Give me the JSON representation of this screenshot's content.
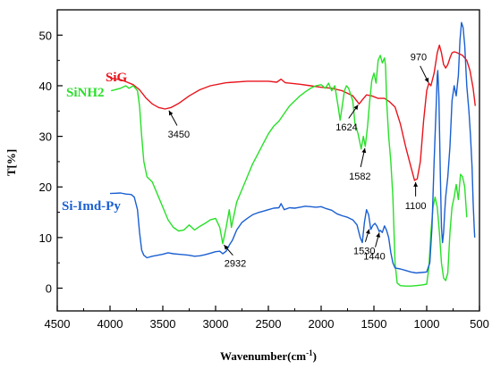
{
  "chart_data": {
    "type": "line",
    "title": "",
    "xlabel": "Wavenumber(cm",
    "xlabel_sup": "-1",
    "xlabel_close": ")",
    "ylabel": "T[%]",
    "xlim": [
      4500,
      500
    ],
    "ylim": [
      -4.5,
      55
    ],
    "x_reversed": true,
    "grid": false,
    "x_ticks": [
      "4500",
      "4000",
      "3500",
      "3000",
      "2500",
      "2000",
      "1500",
      "1000",
      "500"
    ],
    "y_ticks": [
      "0",
      "10",
      "20",
      "30",
      "40",
      "50"
    ],
    "series": [
      {
        "name": "SiG",
        "color": "#e8141c",
        "points": [
          [
            4000,
            41.5
          ],
          [
            3900,
            41.2
          ],
          [
            3850,
            40.8
          ],
          [
            3780,
            40.2
          ],
          [
            3720,
            39.2
          ],
          [
            3660,
            37.6
          ],
          [
            3600,
            36.4
          ],
          [
            3540,
            35.7
          ],
          [
            3480,
            35.4
          ],
          [
            3420,
            35.7
          ],
          [
            3350,
            36.5
          ],
          [
            3250,
            38.0
          ],
          [
            3150,
            39.2
          ],
          [
            3050,
            40.0
          ],
          [
            2900,
            40.6
          ],
          [
            2700,
            40.9
          ],
          [
            2500,
            40.9
          ],
          [
            2420,
            40.7
          ],
          [
            2380,
            41.3
          ],
          [
            2340,
            40.6
          ],
          [
            2200,
            40.3
          ],
          [
            2100,
            40.0
          ],
          [
            2000,
            39.7
          ],
          [
            1900,
            39.5
          ],
          [
            1800,
            39.0
          ],
          [
            1700,
            38.0
          ],
          [
            1640,
            36.4
          ],
          [
            1610,
            37.2
          ],
          [
            1570,
            38.2
          ],
          [
            1520,
            38.0
          ],
          [
            1460,
            37.5
          ],
          [
            1400,
            37.5
          ],
          [
            1350,
            36.8
          ],
          [
            1300,
            35.8
          ],
          [
            1250,
            32.5
          ],
          [
            1200,
            28.0
          ],
          [
            1150,
            24.0
          ],
          [
            1115,
            21.3
          ],
          [
            1090,
            21.6
          ],
          [
            1060,
            25.0
          ],
          [
            1030,
            33.0
          ],
          [
            1000,
            39.0
          ],
          [
            980,
            40.5
          ],
          [
            960,
            40.0
          ],
          [
            930,
            42.5
          ],
          [
            900,
            46.5
          ],
          [
            880,
            48.0
          ],
          [
            860,
            46.5
          ],
          [
            840,
            44.2
          ],
          [
            820,
            43.5
          ],
          [
            800,
            44.2
          ],
          [
            780,
            45.5
          ],
          [
            760,
            46.5
          ],
          [
            740,
            46.7
          ],
          [
            720,
            46.6
          ],
          [
            700,
            46.4
          ],
          [
            660,
            46.0
          ],
          [
            620,
            45.0
          ],
          [
            590,
            43.0
          ],
          [
            560,
            39.5
          ],
          [
            540,
            36.0
          ]
        ]
      },
      {
        "name": "SiNH2",
        "color": "#28e028",
        "points": [
          [
            3990,
            39.0
          ],
          [
            3900,
            39.5
          ],
          [
            3850,
            40.0
          ],
          [
            3820,
            39.5
          ],
          [
            3780,
            40.0
          ],
          [
            3740,
            39.0
          ],
          [
            3720,
            36.0
          ],
          [
            3700,
            30.0
          ],
          [
            3680,
            25.0
          ],
          [
            3650,
            22.0
          ],
          [
            3600,
            21.0
          ],
          [
            3550,
            18.5
          ],
          [
            3500,
            16.0
          ],
          [
            3450,
            13.5
          ],
          [
            3400,
            12.0
          ],
          [
            3350,
            11.3
          ],
          [
            3300,
            11.5
          ],
          [
            3250,
            12.5
          ],
          [
            3200,
            11.5
          ],
          [
            3150,
            12.2
          ],
          [
            3100,
            12.8
          ],
          [
            3050,
            13.5
          ],
          [
            3000,
            13.8
          ],
          [
            2960,
            12.0
          ],
          [
            2932,
            8.8
          ],
          [
            2900,
            12.0
          ],
          [
            2870,
            15.5
          ],
          [
            2850,
            12.0
          ],
          [
            2800,
            17.0
          ],
          [
            2750,
            19.5
          ],
          [
            2700,
            22.0
          ],
          [
            2650,
            24.5
          ],
          [
            2600,
            26.5
          ],
          [
            2550,
            28.5
          ],
          [
            2500,
            30.5
          ],
          [
            2450,
            32.0
          ],
          [
            2400,
            33.0
          ],
          [
            2350,
            34.5
          ],
          [
            2300,
            36.0
          ],
          [
            2250,
            37.0
          ],
          [
            2200,
            38.0
          ],
          [
            2150,
            38.8
          ],
          [
            2100,
            39.5
          ],
          [
            2050,
            40.0
          ],
          [
            2000,
            40.2
          ],
          [
            1960,
            39.5
          ],
          [
            1930,
            40.5
          ],
          [
            1900,
            39.0
          ],
          [
            1870,
            40.0
          ],
          [
            1840,
            36.0
          ],
          [
            1820,
            33.2
          ],
          [
            1800,
            36.0
          ],
          [
            1780,
            39.0
          ],
          [
            1760,
            40.0
          ],
          [
            1740,
            39.5
          ],
          [
            1700,
            37.0
          ],
          [
            1680,
            32.5
          ],
          [
            1650,
            30.5
          ],
          [
            1620,
            27.5
          ],
          [
            1600,
            30.0
          ],
          [
            1582,
            28.0
          ],
          [
            1560,
            32.0
          ],
          [
            1540,
            37.0
          ],
          [
            1520,
            41.0
          ],
          [
            1500,
            42.5
          ],
          [
            1480,
            40.5
          ],
          [
            1460,
            45.0
          ],
          [
            1440,
            46.0
          ],
          [
            1420,
            44.5
          ],
          [
            1400,
            45.5
          ],
          [
            1390,
            44.0
          ],
          [
            1380,
            37.0
          ],
          [
            1360,
            30.0
          ],
          [
            1340,
            25.0
          ],
          [
            1320,
            18.0
          ],
          [
            1300,
            5.0
          ],
          [
            1280,
            1.0
          ],
          [
            1250,
            0.5
          ],
          [
            1200,
            0.4
          ],
          [
            1150,
            0.4
          ],
          [
            1100,
            0.5
          ],
          [
            1050,
            0.6
          ],
          [
            1000,
            0.8
          ],
          [
            980,
            4.0
          ],
          [
            960,
            11.0
          ],
          [
            940,
            16.0
          ],
          [
            920,
            18.0
          ],
          [
            900,
            16.0
          ],
          [
            880,
            11.0
          ],
          [
            860,
            5.0
          ],
          [
            840,
            2.0
          ],
          [
            820,
            1.5
          ],
          [
            800,
            3.0
          ],
          [
            780,
            11.0
          ],
          [
            760,
            16.0
          ],
          [
            740,
            18.0
          ],
          [
            720,
            20.5
          ],
          [
            700,
            17.5
          ],
          [
            680,
            22.5
          ],
          [
            660,
            22.0
          ],
          [
            640,
            20.0
          ],
          [
            620,
            14.0
          ]
        ]
      },
      {
        "name": "Si-Imd-Py",
        "color": "#1a5fd1",
        "points": [
          [
            4000,
            18.7
          ],
          [
            3900,
            18.8
          ],
          [
            3850,
            18.6
          ],
          [
            3800,
            18.5
          ],
          [
            3770,
            18.0
          ],
          [
            3740,
            15.5
          ],
          [
            3720,
            11.0
          ],
          [
            3700,
            7.5
          ],
          [
            3680,
            6.5
          ],
          [
            3650,
            6.0
          ],
          [
            3600,
            6.3
          ],
          [
            3550,
            6.5
          ],
          [
            3500,
            6.7
          ],
          [
            3450,
            7.0
          ],
          [
            3400,
            6.8
          ],
          [
            3350,
            6.7
          ],
          [
            3300,
            6.6
          ],
          [
            3250,
            6.5
          ],
          [
            3200,
            6.3
          ],
          [
            3150,
            6.4
          ],
          [
            3100,
            6.6
          ],
          [
            3050,
            6.9
          ],
          [
            3000,
            7.2
          ],
          [
            2960,
            7.3
          ],
          [
            2932,
            6.8
          ],
          [
            2900,
            7.3
          ],
          [
            2870,
            8.5
          ],
          [
            2840,
            9.5
          ],
          [
            2800,
            11.5
          ],
          [
            2750,
            13.0
          ],
          [
            2700,
            13.8
          ],
          [
            2650,
            14.5
          ],
          [
            2600,
            14.9
          ],
          [
            2550,
            15.2
          ],
          [
            2500,
            15.5
          ],
          [
            2450,
            15.8
          ],
          [
            2400,
            15.9
          ],
          [
            2380,
            16.7
          ],
          [
            2350,
            15.5
          ],
          [
            2300,
            15.9
          ],
          [
            2250,
            15.8
          ],
          [
            2200,
            16.0
          ],
          [
            2150,
            16.2
          ],
          [
            2100,
            16.1
          ],
          [
            2050,
            16.0
          ],
          [
            2000,
            16.1
          ],
          [
            1950,
            15.7
          ],
          [
            1900,
            15.4
          ],
          [
            1850,
            14.7
          ],
          [
            1800,
            14.3
          ],
          [
            1750,
            14.0
          ],
          [
            1700,
            13.5
          ],
          [
            1660,
            12.5
          ],
          [
            1630,
            10.0
          ],
          [
            1610,
            9.0
          ],
          [
            1590,
            13.0
          ],
          [
            1570,
            15.5
          ],
          [
            1550,
            14.5
          ],
          [
            1530,
            11.6
          ],
          [
            1510,
            12.4
          ],
          [
            1490,
            12.8
          ],
          [
            1470,
            12.2
          ],
          [
            1450,
            11.2
          ],
          [
            1440,
            11.4
          ],
          [
            1420,
            11.0
          ],
          [
            1400,
            12.3
          ],
          [
            1380,
            11.4
          ],
          [
            1360,
            10.0
          ],
          [
            1340,
            7.0
          ],
          [
            1320,
            5.0
          ],
          [
            1300,
            4.0
          ],
          [
            1250,
            3.8
          ],
          [
            1200,
            3.5
          ],
          [
            1150,
            3.2
          ],
          [
            1100,
            3.0
          ],
          [
            1050,
            3.1
          ],
          [
            1000,
            3.2
          ],
          [
            970,
            5.0
          ],
          [
            950,
            12.0
          ],
          [
            930,
            25.0
          ],
          [
            910,
            36.0
          ],
          [
            900,
            42.0
          ],
          [
            895,
            43.0
          ],
          [
            885,
            38.0
          ],
          [
            870,
            22.0
          ],
          [
            860,
            12.0
          ],
          [
            850,
            9.0
          ],
          [
            840,
            11.0
          ],
          [
            830,
            15.0
          ],
          [
            820,
            18.0
          ],
          [
            800,
            22.0
          ],
          [
            780,
            28.0
          ],
          [
            760,
            37.0
          ],
          [
            740,
            40.0
          ],
          [
            720,
            38.0
          ],
          [
            700,
            42.0
          ],
          [
            685,
            49.0
          ],
          [
            670,
            52.5
          ],
          [
            655,
            51.5
          ],
          [
            640,
            48.0
          ],
          [
            620,
            40.0
          ],
          [
            600,
            35.0
          ],
          [
            585,
            30.0
          ],
          [
            570,
            24.0
          ],
          [
            560,
            17.0
          ],
          [
            550,
            12.0
          ],
          [
            545,
            10.0
          ]
        ]
      }
    ],
    "annotations": [
      {
        "label": "3450",
        "x": 3450,
        "y": 35.4,
        "series": "SiG"
      },
      {
        "label": "1624",
        "x": 1640,
        "y": 36.5,
        "series": "SiG"
      },
      {
        "label": "1582",
        "x": 1582,
        "y": 28.0,
        "series": "SiNH2"
      },
      {
        "label": "970",
        "x": 975,
        "y": 40.3,
        "series": "SiG"
      },
      {
        "label": "1100",
        "x": 1105,
        "y": 21.3,
        "series": "SiG"
      },
      {
        "label": "2932",
        "x": 2932,
        "y": 8.8,
        "series": "SiNH2"
      },
      {
        "label": "1530",
        "x": 1540,
        "y": 12.0,
        "series": "Si-Imd-Py"
      },
      {
        "label": "1440",
        "x": 1445,
        "y": 11.3,
        "series": "Si-Imd-Py"
      }
    ]
  }
}
